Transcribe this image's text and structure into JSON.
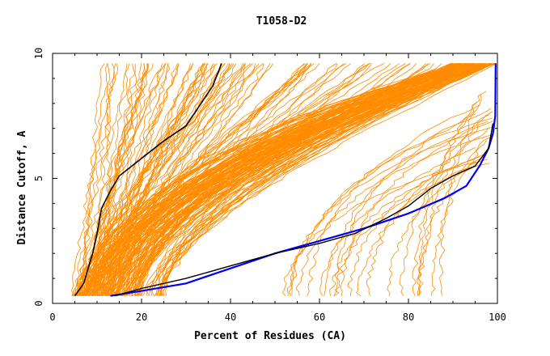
{
  "chart_data": {
    "type": "line",
    "title": "T1058-D2",
    "xlabel": "Percent of Residues (CA)",
    "ylabel": "Distance Cutoff, A",
    "xlim": [
      0,
      100
    ],
    "ylim": [
      0,
      10
    ],
    "x_ticks": [
      0,
      20,
      40,
      60,
      80,
      100
    ],
    "y_ticks": [
      0,
      5,
      10
    ],
    "grid": false,
    "legend": "none",
    "colors": {
      "background_models": "#ff8c00",
      "highlight_1": "#000000",
      "highlight_2": "#0000ff",
      "highlight_3": "#000000"
    },
    "series": [
      {
        "x": [
          5,
          7,
          9,
          10,
          11,
          13,
          15,
          20,
          25,
          30,
          33,
          36,
          38
        ],
        "y": [
          0.3,
          0.8,
          2.0,
          2.8,
          3.8,
          4.5,
          5.1,
          5.8,
          6.5,
          7.1,
          7.9,
          8.7,
          9.6
        ]
      },
      {
        "x": [
          13,
          20,
          30,
          40,
          50,
          60,
          70,
          80,
          88,
          93,
          96,
          98,
          99,
          99.5,
          99.6
        ],
        "y": [
          0.3,
          0.5,
          0.8,
          1.4,
          2.0,
          2.5,
          3.0,
          3.6,
          4.2,
          4.7,
          5.5,
          6.2,
          6.8,
          7.5,
          9.6
        ]
      },
      {
        "x": [
          14,
          20,
          30,
          40,
          50,
          60,
          68,
          75,
          80,
          85,
          90,
          95,
          98,
          99
        ],
        "y": [
          0.3,
          0.6,
          1.0,
          1.5,
          2.0,
          2.4,
          2.8,
          3.4,
          3.9,
          4.6,
          5.1,
          5.5,
          6.2,
          7.2
        ]
      }
    ]
  }
}
